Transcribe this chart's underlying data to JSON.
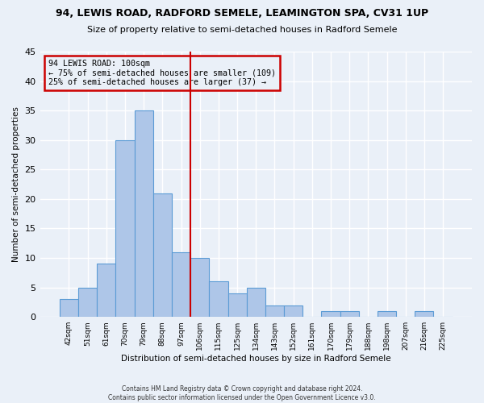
{
  "title1": "94, LEWIS ROAD, RADFORD SEMELE, LEAMINGTON SPA, CV31 1UP",
  "title2": "Size of property relative to semi-detached houses in Radford Semele",
  "xlabel": "Distribution of semi-detached houses by size in Radford Semele",
  "ylabel": "Number of semi-detached properties",
  "footer": "Contains HM Land Registry data © Crown copyright and database right 2024.\nContains public sector information licensed under the Open Government Licence v3.0.",
  "bin_labels": [
    "42sqm",
    "51sqm",
    "61sqm",
    "70sqm",
    "79sqm",
    "88sqm",
    "97sqm",
    "106sqm",
    "115sqm",
    "125sqm",
    "134sqm",
    "143sqm",
    "152sqm",
    "161sqm",
    "170sqm",
    "179sqm",
    "188sqm",
    "198sqm",
    "207sqm",
    "216sqm",
    "225sqm"
  ],
  "bin_values": [
    3,
    5,
    9,
    30,
    35,
    21,
    11,
    10,
    6,
    4,
    5,
    2,
    2,
    0,
    1,
    1,
    0,
    1,
    0,
    1,
    0
  ],
  "bar_color": "#aec6e8",
  "bar_edge_color": "#5b9bd5",
  "property_line_x": 6.5,
  "annotation_title": "94 LEWIS ROAD: 100sqm",
  "annotation_line1": "← 75% of semi-detached houses are smaller (109)",
  "annotation_line2": "25% of semi-detached houses are larger (37) →",
  "annotation_box_color": "#cc0000",
  "vline_color": "#cc0000",
  "ylim": [
    0,
    45
  ],
  "yticks": [
    0,
    5,
    10,
    15,
    20,
    25,
    30,
    35,
    40,
    45
  ],
  "bg_color": "#eaf0f8",
  "grid_color": "#ffffff"
}
